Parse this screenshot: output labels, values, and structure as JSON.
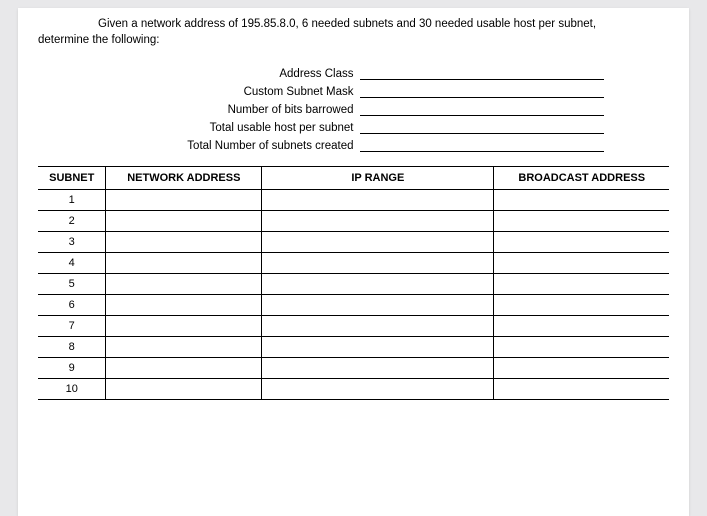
{
  "question_line1": "Given a network address of 195.85.8.0, 6 needed subnets and 30 needed usable host per subnet,",
  "question_line2": "determine the following:",
  "fields": {
    "address_class": "Address Class",
    "custom_subnet_mask": "Custom Subnet Mask",
    "bits_borrowed": "Number of bits barrowed",
    "usable_host": "Total usable host per subnet",
    "total_subnets": "Total Number of subnets created"
  },
  "table": {
    "headers": {
      "subnet": "SUBNET",
      "network": "NETWORK ADDRESS",
      "iprange": "IP RANGE",
      "broadcast": "BROADCAST ADDRESS"
    },
    "rows": [
      "1",
      "2",
      "3",
      "4",
      "5",
      "6",
      "7",
      "8",
      "9",
      "10"
    ]
  },
  "colors": {
    "page_bg": "#ffffff",
    "outer_bg": "#e8e8ea",
    "text": "#000000",
    "border": "#000000"
  }
}
